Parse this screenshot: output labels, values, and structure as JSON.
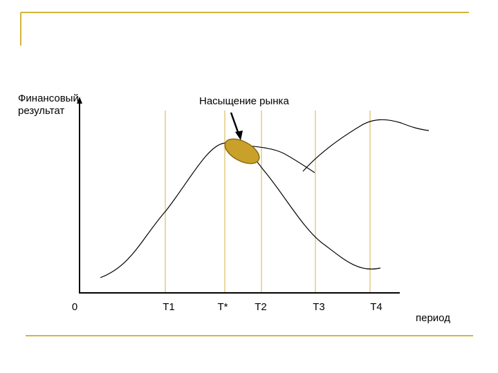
{
  "colors": {
    "frame": "#d4b43a",
    "guide": "#e0c26a",
    "curve": "#000000",
    "highlight_fill": "#c9a12a",
    "highlight_stroke": "#8a6a10"
  },
  "diagram": {
    "y_axis_label_lines": [
      "Финансовый",
      "результат"
    ],
    "x_axis_label": "период",
    "annotation": "Насыщение рынка",
    "origin_label": "0",
    "period_marks": [
      "T1",
      "T*",
      "T2",
      "T3",
      "T4"
    ]
  }
}
